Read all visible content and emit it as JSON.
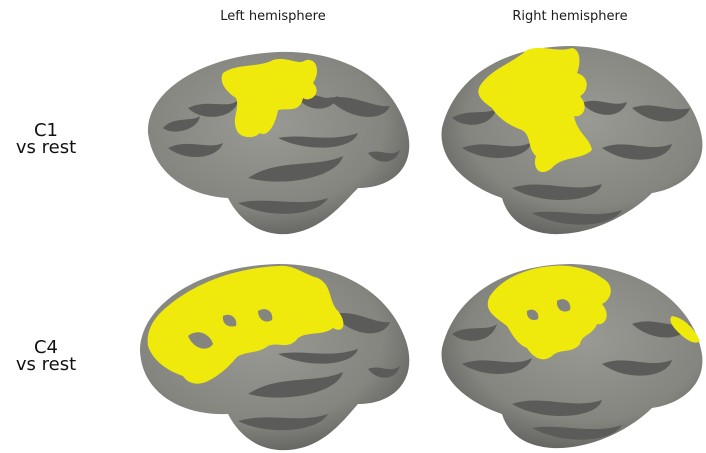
{
  "columns": {
    "left": "Left hemisphere",
    "right": "Right hemisphere"
  },
  "rows": [
    {
      "line1": "C1",
      "line2": "vs rest"
    },
    {
      "line1": "C4",
      "line2": "vs rest"
    }
  ],
  "colors": {
    "activation": "#f0ea0c",
    "surface_light": "#8d8d88",
    "surface_dark": "#5b5b59",
    "background": "#ffffff"
  }
}
